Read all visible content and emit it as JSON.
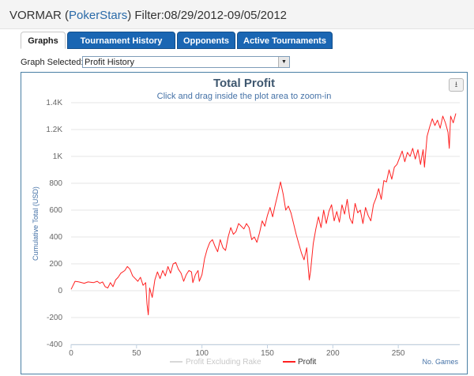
{
  "header": {
    "player": "VORMAR (",
    "site": "PokerStars",
    "filter": ") Filter:08/29/2012-09/05/2012"
  },
  "tabs": [
    {
      "label": "Graphs",
      "active": true
    },
    {
      "label": "Tournament History",
      "active": false
    },
    {
      "label": "Opponents",
      "active": false
    },
    {
      "label": "Active Tournaments",
      "active": false
    }
  ],
  "graph_selector": {
    "label": "Graph Selected:",
    "value": "Profit History"
  },
  "chart_data": {
    "type": "line",
    "title": "Total Profit",
    "subtitle": "Click and drag inside the plot area to zoom-in",
    "xlabel": "No. Games",
    "ylabel": "Cumulative Total (USD)",
    "xlim": [
      0,
      297
    ],
    "ylim": [
      -400,
      1400
    ],
    "x_ticks": [
      "0",
      "50",
      "100",
      "150",
      "200",
      "250"
    ],
    "y_ticks": [
      "-400",
      "-200",
      "0",
      "200",
      "400",
      "600",
      "800",
      "1K",
      "1.2K",
      "1.4K"
    ],
    "series": [
      {
        "name": "Profit Excluding Rake",
        "color": "#d8d8d8",
        "visible": false,
        "values": []
      },
      {
        "name": "Profit",
        "color": "#ff2020",
        "visible": true,
        "values": [
          [
            0,
            10
          ],
          [
            3,
            70
          ],
          [
            6,
            65
          ],
          [
            10,
            55
          ],
          [
            13,
            65
          ],
          [
            17,
            60
          ],
          [
            20,
            70
          ],
          [
            22,
            55
          ],
          [
            24,
            65
          ],
          [
            26,
            30
          ],
          [
            28,
            20
          ],
          [
            30,
            60
          ],
          [
            32,
            30
          ],
          [
            34,
            80
          ],
          [
            36,
            100
          ],
          [
            38,
            130
          ],
          [
            41,
            150
          ],
          [
            43,
            180
          ],
          [
            45,
            160
          ],
          [
            47,
            110
          ],
          [
            49,
            90
          ],
          [
            51,
            70
          ],
          [
            53,
            100
          ],
          [
            55,
            40
          ],
          [
            57,
            60
          ],
          [
            58,
            -100
          ],
          [
            59,
            -180
          ],
          [
            60,
            20
          ],
          [
            62,
            -50
          ],
          [
            64,
            80
          ],
          [
            66,
            140
          ],
          [
            68,
            90
          ],
          [
            70,
            150
          ],
          [
            72,
            110
          ],
          [
            74,
            180
          ],
          [
            76,
            130
          ],
          [
            78,
            200
          ],
          [
            80,
            210
          ],
          [
            82,
            160
          ],
          [
            84,
            130
          ],
          [
            86,
            70
          ],
          [
            88,
            120
          ],
          [
            90,
            150
          ],
          [
            92,
            140
          ],
          [
            93,
            60
          ],
          [
            95,
            120
          ],
          [
            97,
            150
          ],
          [
            98,
            70
          ],
          [
            100,
            120
          ],
          [
            102,
            240
          ],
          [
            104,
            310
          ],
          [
            106,
            360
          ],
          [
            108,
            380
          ],
          [
            110,
            330
          ],
          [
            112,
            290
          ],
          [
            114,
            380
          ],
          [
            116,
            320
          ],
          [
            118,
            300
          ],
          [
            120,
            400
          ],
          [
            122,
            470
          ],
          [
            124,
            420
          ],
          [
            126,
            440
          ],
          [
            128,
            500
          ],
          [
            130,
            480
          ],
          [
            132,
            460
          ],
          [
            134,
            500
          ],
          [
            136,
            470
          ],
          [
            138,
            380
          ],
          [
            140,
            400
          ],
          [
            142,
            360
          ],
          [
            144,
            430
          ],
          [
            146,
            520
          ],
          [
            148,
            480
          ],
          [
            150,
            560
          ],
          [
            152,
            620
          ],
          [
            154,
            550
          ],
          [
            156,
            640
          ],
          [
            158,
            720
          ],
          [
            160,
            810
          ],
          [
            162,
            720
          ],
          [
            164,
            600
          ],
          [
            166,
            630
          ],
          [
            168,
            580
          ],
          [
            170,
            500
          ],
          [
            172,
            420
          ],
          [
            174,
            350
          ],
          [
            176,
            280
          ],
          [
            178,
            230
          ],
          [
            180,
            320
          ],
          [
            181,
            200
          ],
          [
            182,
            80
          ],
          [
            183,
            150
          ],
          [
            185,
            350
          ],
          [
            187,
            460
          ],
          [
            189,
            550
          ],
          [
            191,
            470
          ],
          [
            193,
            600
          ],
          [
            195,
            500
          ],
          [
            197,
            590
          ],
          [
            199,
            640
          ],
          [
            201,
            520
          ],
          [
            203,
            590
          ],
          [
            205,
            510
          ],
          [
            207,
            640
          ],
          [
            209,
            570
          ],
          [
            211,
            680
          ],
          [
            213,
            540
          ],
          [
            215,
            500
          ],
          [
            217,
            650
          ],
          [
            219,
            580
          ],
          [
            221,
            600
          ],
          [
            223,
            500
          ],
          [
            225,
            620
          ],
          [
            227,
            560
          ],
          [
            229,
            520
          ],
          [
            231,
            640
          ],
          [
            233,
            690
          ],
          [
            235,
            760
          ],
          [
            237,
            680
          ],
          [
            239,
            820
          ],
          [
            241,
            810
          ],
          [
            243,
            900
          ],
          [
            245,
            830
          ],
          [
            247,
            920
          ],
          [
            249,
            940
          ],
          [
            251,
            990
          ],
          [
            253,
            1040
          ],
          [
            255,
            960
          ],
          [
            257,
            1030
          ],
          [
            259,
            1000
          ],
          [
            261,
            1060
          ],
          [
            263,
            980
          ],
          [
            265,
            1050
          ],
          [
            267,
            940
          ],
          [
            268,
            1000
          ],
          [
            269,
            1050
          ],
          [
            270,
            920
          ],
          [
            272,
            1150
          ],
          [
            274,
            1220
          ],
          [
            276,
            1280
          ],
          [
            278,
            1230
          ],
          [
            280,
            1270
          ],
          [
            282,
            1210
          ],
          [
            284,
            1300
          ],
          [
            286,
            1250
          ],
          [
            288,
            1180
          ],
          [
            289,
            1060
          ],
          [
            290,
            1300
          ],
          [
            292,
            1250
          ],
          [
            294,
            1320
          ]
        ]
      }
    ]
  }
}
